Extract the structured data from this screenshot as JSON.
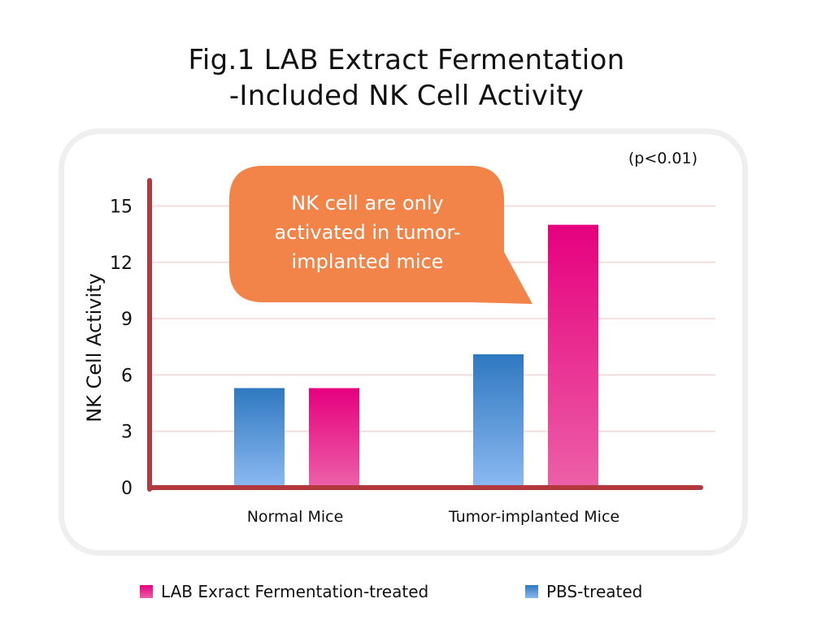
{
  "title_line1": "Fig.1 LAB Extract Fermentation",
  "title_line2": "-Included NK Cell Activity",
  "colors": {
    "axis": "#b23a3f",
    "grid": "#f3dede",
    "pbs_top": "#2f78c0",
    "pbs_bottom": "#8ab8f0",
    "lab_top": "#e6007e",
    "lab_bottom": "#ec5fa7",
    "callout": "#f2844a",
    "callout_text": "#ffffff",
    "panel_border": "#efefef"
  },
  "legend": {
    "lab_label": "LAB Exract Fermentation-treated",
    "pbs_label": "PBS-treated"
  },
  "chart_data": {
    "type": "bar",
    "title": "Fig.1 LAB Extract Fermentation -Included NK Cell Activity",
    "ylabel": "NK Cell Activity",
    "xlabel": "",
    "categories": [
      "Normal Mice",
      "Tumor-implanted Mice"
    ],
    "series": [
      {
        "name": "PBS-treated",
        "values": [
          5.3,
          7.1
        ]
      },
      {
        "name": "LAB Exract Fermentation-treated",
        "values": [
          5.3,
          14.0
        ]
      }
    ],
    "ylim": [
      0,
      16
    ],
    "yticks": [
      0,
      3,
      6,
      9,
      12,
      15
    ],
    "grid": true,
    "legend_position": "bottom",
    "annotation_significance": "(p<0.01)",
    "callout_lines": [
      "NK cell are only",
      "activated in tumor-",
      "implanted mice"
    ]
  }
}
